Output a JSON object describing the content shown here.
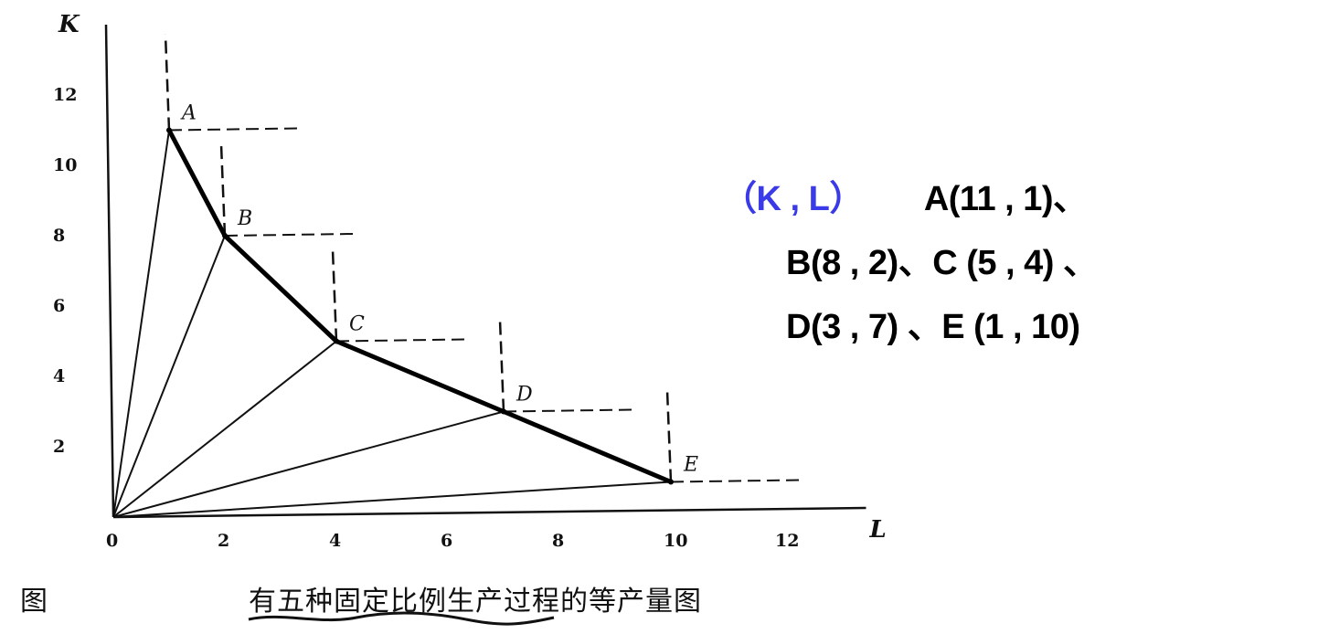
{
  "chart_data": {
    "type": "line",
    "title": "",
    "xlabel": "L",
    "ylabel": "K",
    "xlim": [
      0,
      13.5
    ],
    "ylim": [
      0,
      14
    ],
    "grid": false,
    "x_ticks": [
      "0",
      "2",
      "4",
      "6",
      "8",
      "10",
      "12"
    ],
    "y_ticks": [
      "2",
      "4",
      "6",
      "8",
      "10",
      "12"
    ],
    "points": [
      {
        "name": "A",
        "L": 1,
        "K": 11
      },
      {
        "name": "B",
        "L": 2,
        "K": 8
      },
      {
        "name": "C",
        "L": 4,
        "K": 5
      },
      {
        "name": "D",
        "L": 7,
        "K": 3
      },
      {
        "name": "E",
        "L": 10,
        "K": 1
      }
    ],
    "series": [
      {
        "values_from": "points",
        "style": "isoquant"
      }
    ]
  },
  "caption": {
    "prefix": "图",
    "text": "有五种固定比例生产过程的等产量图"
  },
  "annotation": {
    "header": "（K , L）",
    "line1": "A(11 , 1)、",
    "line2": "B(8 , 2)、C (5 , 4) 、",
    "line3": "D(3 , 7) 、E (1 , 10)",
    "header_color": "#3a3ae8"
  }
}
